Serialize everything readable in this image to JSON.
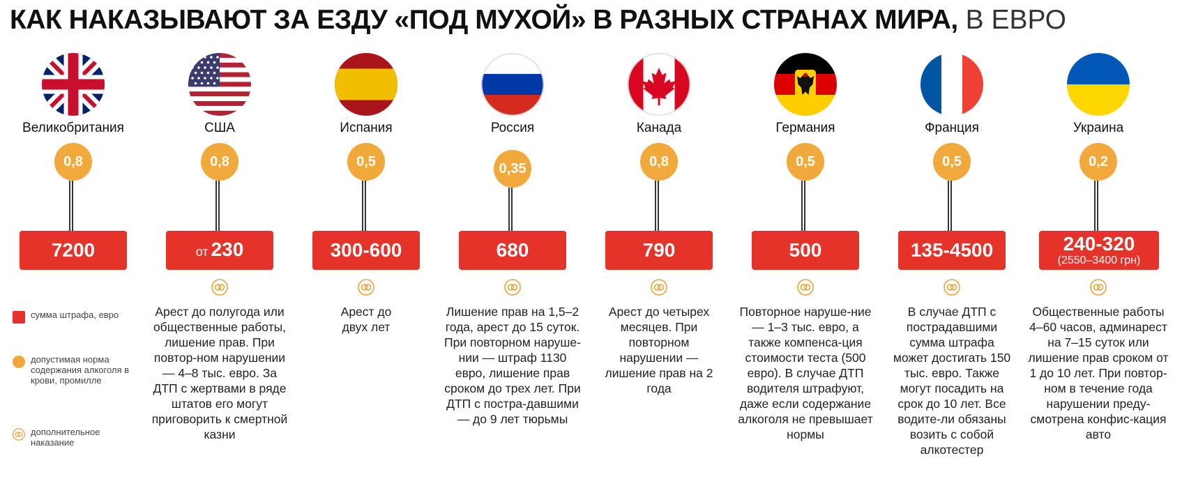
{
  "title": {
    "bold": "КАК НАКАЗЫВАЮТ ЗА ЕЗДУ «ПОД МУХОЙ» В РАЗНЫХ СТРАНАХ МИРА,",
    "light": "В ЕВРО"
  },
  "colors": {
    "fine": "#e5332a",
    "bac": "#f2a93b",
    "icon": "#e8a33b"
  },
  "legend": {
    "fine_label": "сумма штрафа, евро",
    "bac_label": "допустимая норма содержания алкоголя в крови, промилле",
    "extra_label": "дополнительное наказание"
  },
  "countries": [
    {
      "name": "Великобритания",
      "flag": "uk-flag-icon",
      "bac": "0,8",
      "fine_prefix": "",
      "fine": "7200",
      "fine_sub": "",
      "extra": ""
    },
    {
      "name": "США",
      "flag": "usa-flag-icon",
      "bac": "0,8",
      "fine_prefix": "от",
      "fine": "230",
      "fine_sub": "",
      "extra": "Арест до полугода или общественные работы, лишение прав. При повтор-ном нарушении — 4–8 тыс. евро. За ДТП с жертвами в ряде штатов его могут приговорить к смертной казни"
    },
    {
      "name": "Испания",
      "flag": "spain-flag-icon",
      "bac": "0,5",
      "fine_prefix": "",
      "fine": "300-600",
      "fine_sub": "",
      "extra": "Арест до двух лет"
    },
    {
      "name": "Россия",
      "flag": "russia-flag-icon",
      "bac": "0,35",
      "fine_prefix": "",
      "fine": "680",
      "fine_sub": "",
      "extra": "Лишение прав на 1,5–2 года, арест до 15 суток. При повторном наруше-нии — штраф 1130 евро, лишение прав сроком до трех лет. При ДТП с постра-давшими — до 9 лет тюрьмы"
    },
    {
      "name": "Канада",
      "flag": "canada-flag-icon",
      "bac": "0,8",
      "fine_prefix": "",
      "fine": "790",
      "fine_sub": "",
      "extra": "Арест до четырех месяцев. При повторном нарушении — лишение прав на 2 года"
    },
    {
      "name": "Германия",
      "flag": "germany-flag-icon",
      "bac": "0,5",
      "fine_prefix": "",
      "fine": "500",
      "fine_sub": "",
      "extra": "Повторное наруше-ние — 1–3 тыс. евро, а также компенса-ция стоимости теста (500 евро). В случае ДТП водителя штрафуют, даже если содержание алкоголя не превышает нормы"
    },
    {
      "name": "Франция",
      "flag": "france-flag-icon",
      "bac": "0,5",
      "fine_prefix": "",
      "fine": "135-4500",
      "fine_sub": "",
      "extra": "В случае ДТП с пострадавшими сумма штрафа может достигать 150 тыс. евро. Также могут посадить на срок до 10 лет. Все водите-ли обязаны возить с собой алкотестер"
    },
    {
      "name": "Украина",
      "flag": "ukraine-flag-icon",
      "bac": "0,2",
      "fine_prefix": "",
      "fine": "240-320",
      "fine_sub": "(2550–3400 грн)",
      "extra": "Общественные работы 4–60 часов, админарест на 7–15 суток или лишение прав сроком от 1 до 10 лет. При повтор-ном в течение года нарушении преду-смотрена конфис-кация авто"
    }
  ]
}
